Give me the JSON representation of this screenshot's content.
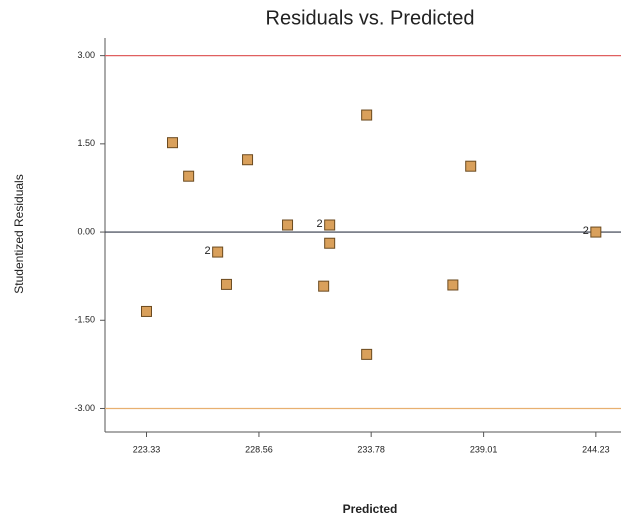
{
  "chart_data": {
    "type": "scatter",
    "title": "Residuals vs. Predicted",
    "x_label": "Predicted",
    "y_label": "Studentized Residuals",
    "x": [
      223.33,
      224.54,
      225.29,
      226.64,
      227.05,
      228.03,
      229.89,
      231.85,
      231.85,
      231.57,
      233.57,
      233.57,
      237.58,
      238.41,
      244.23
    ],
    "values": [
      -1.35,
      1.52,
      0.95,
      -0.34,
      -0.89,
      1.23,
      0.12,
      0.12,
      -0.19,
      -0.92,
      1.99,
      -2.08,
      -0.9,
      1.12,
      0.0
    ],
    "point_labels": [
      null,
      null,
      null,
      "2",
      null,
      null,
      null,
      "2",
      null,
      null,
      null,
      null,
      null,
      null,
      "2"
    ],
    "color": "#d9a05b",
    "xlim": [
      221.4,
      245.4
    ],
    "xticks": [
      223.33,
      228.56,
      233.78,
      239.01,
      244.23
    ],
    "ylim": [
      -3.4,
      3.3
    ],
    "yticks": [
      {
        "value": -3,
        "label": "-3.00"
      },
      {
        "value": -1.5,
        "label": "-1.50"
      },
      {
        "value": 0,
        "label": "0.00"
      },
      {
        "value": 1.5,
        "label": "1.50"
      },
      {
        "value": 3,
        "label": "3.00"
      }
    ],
    "reference_lines": [
      {
        "value": 3,
        "color": "#e06060"
      },
      {
        "value": 0,
        "color": "#303848"
      },
      {
        "value": -3,
        "color": "#e8b070"
      }
    ]
  }
}
